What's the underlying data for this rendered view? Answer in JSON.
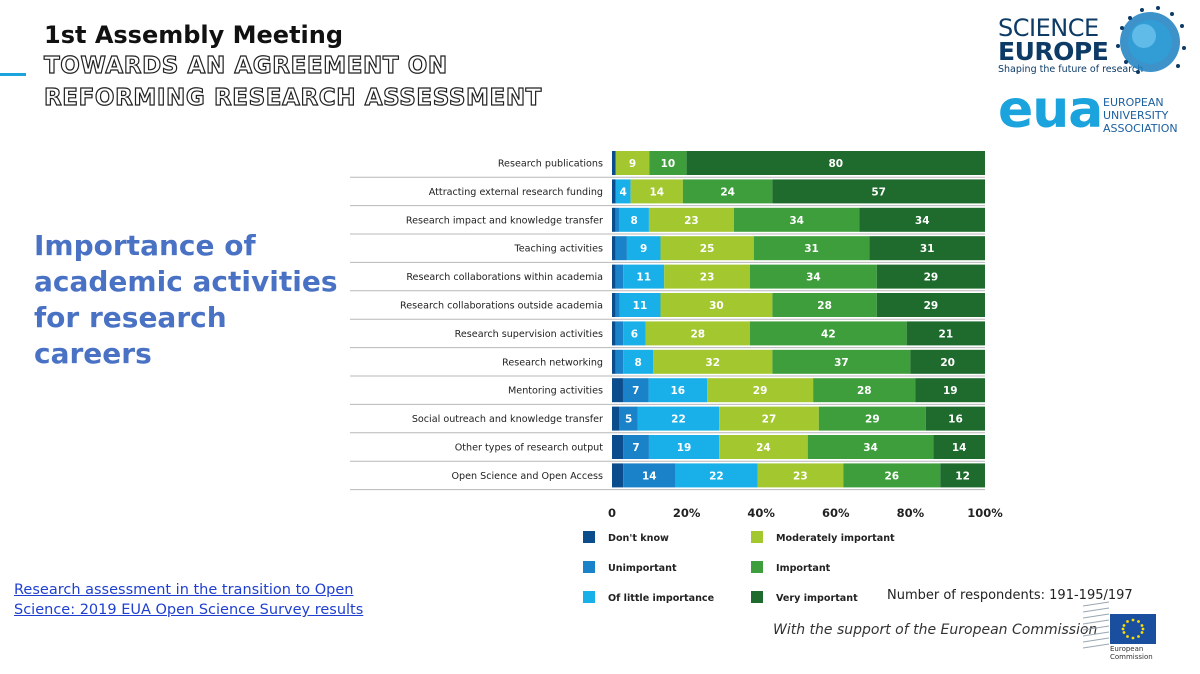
{
  "header": {
    "line1": "1st Assembly Meeting",
    "line2": "TOWARDS AN AGREEMENT ON",
    "line3": "REFORMING RESEARCH ASSESSMENT"
  },
  "side_title": {
    "line1": "Importance of",
    "line2": "academic activities",
    "line3": "for research",
    "line4": "careers"
  },
  "source_link": {
    "line1": "Research assessment in the transition to Open",
    "line2": "Science: 2019 EUA Open Science Survey results"
  },
  "respondents": "Number of respondents: 191-195/197",
  "support_note": "With the support of the European Commission",
  "logos": {
    "science_europe": {
      "line1": "SCIENCE",
      "line2": "EUROPE",
      "tagline": "Shaping the future of research"
    },
    "eua": {
      "abbr": "eua",
      "line1": "EUROPEAN",
      "line2": "UNIVERSITY",
      "line3": "ASSOCIATION"
    },
    "european_commission": {
      "line1": "European",
      "line2": "Commission"
    }
  },
  "colors": {
    "accent": "#1aa3dc",
    "title_blue": "#4a72c4",
    "link_blue": "#1f3fd0"
  },
  "chart_data": {
    "type": "bar",
    "orientation": "horizontal",
    "stacked": true,
    "percent": true,
    "categories": [
      "Research publications",
      "Attracting external research funding",
      "Research impact and knowledge transfer",
      "Teaching activities",
      "Research collaborations within academia",
      "Research collaborations outside academia",
      "Research supervision activities",
      "Research networking",
      "Mentoring activities",
      "Social outreach and knowledge transfer",
      "Other types of research output",
      "Open Science and Open Access"
    ],
    "series": [
      {
        "name": "Don't know",
        "color": "#0b4c8c",
        "values": [
          1,
          1,
          1,
          1,
          1,
          1,
          1,
          1,
          3,
          2,
          3,
          3
        ]
      },
      {
        "name": "Unimportant",
        "color": "#1a82c8",
        "values": [
          0,
          0,
          1,
          3,
          2,
          1,
          2,
          2,
          7,
          5,
          7,
          14
        ]
      },
      {
        "name": "Of little importance",
        "color": "#19b0ea",
        "values": [
          0,
          4,
          8,
          9,
          11,
          11,
          6,
          8,
          16,
          22,
          19,
          22
        ]
      },
      {
        "name": "Moderately important",
        "color": "#a3c72e",
        "values": [
          9,
          14,
          23,
          25,
          23,
          30,
          28,
          32,
          29,
          27,
          24,
          23
        ]
      },
      {
        "name": "Important",
        "color": "#3f9e3c",
        "values": [
          10,
          24,
          34,
          31,
          34,
          28,
          42,
          37,
          28,
          29,
          34,
          26
        ]
      },
      {
        "name": "Very important",
        "color": "#1f6b2e",
        "values": [
          80,
          57,
          34,
          31,
          29,
          29,
          21,
          20,
          19,
          16,
          14,
          12
        ]
      }
    ],
    "data_labels": [
      [
        null,
        null,
        null,
        9,
        10,
        80
      ],
      [
        null,
        null,
        4,
        14,
        24,
        57
      ],
      [
        null,
        null,
        8,
        23,
        34,
        34
      ],
      [
        null,
        null,
        9,
        25,
        31,
        31
      ],
      [
        null,
        null,
        11,
        23,
        34,
        29
      ],
      [
        null,
        null,
        11,
        30,
        28,
        29
      ],
      [
        null,
        null,
        6,
        28,
        42,
        21
      ],
      [
        null,
        null,
        8,
        32,
        37,
        20
      ],
      [
        null,
        7,
        16,
        29,
        28,
        19
      ],
      [
        null,
        5,
        22,
        27,
        29,
        16
      ],
      [
        null,
        7,
        19,
        24,
        34,
        14
      ],
      [
        null,
        14,
        22,
        23,
        26,
        12
      ]
    ],
    "x_ticks": [
      "0",
      "20%",
      "40%",
      "60%",
      "80%",
      "100%"
    ],
    "xlim": [
      0,
      100
    ],
    "grid": false,
    "legend_position": "bottom"
  }
}
